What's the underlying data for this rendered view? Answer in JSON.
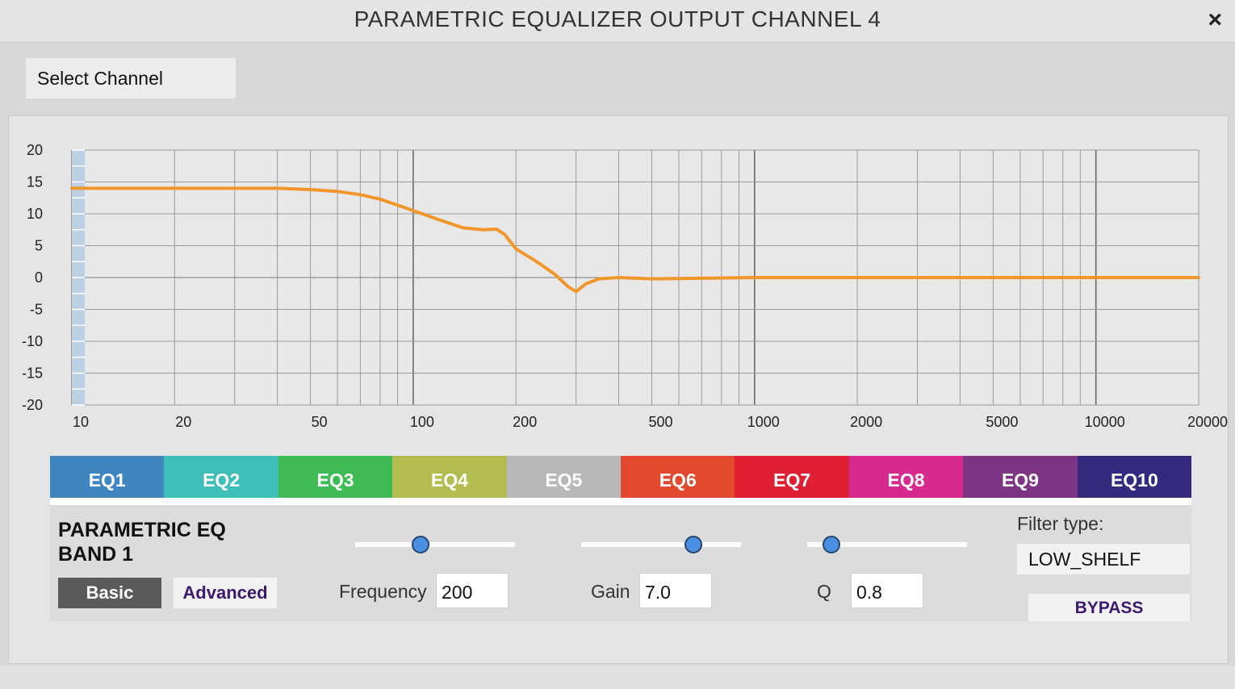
{
  "window": {
    "title": "PARAMETRIC EQUALIZER OUTPUT CHANNEL 4",
    "close_icon": "×"
  },
  "toolbar": {
    "select_channel_label": "Select Channel"
  },
  "chart_data": {
    "type": "line",
    "x_scale": "log",
    "xlim": [
      10,
      20000
    ],
    "ylim": [
      -20,
      20
    ],
    "x_ticks": [
      10,
      20,
      50,
      100,
      200,
      500,
      1000,
      2000,
      5000,
      10000,
      20000
    ],
    "x_tick_labels": [
      "10",
      "20",
      "50",
      "100",
      "200",
      "500",
      "1000",
      "2000",
      "5000",
      "10000",
      "20000"
    ],
    "y_ticks": [
      20,
      15,
      10,
      5,
      0,
      -5,
      -10,
      -15,
      -20
    ],
    "y_tick_labels": [
      "20",
      "15",
      "10",
      "5",
      "0",
      "-5",
      "-10",
      "-15",
      "-20"
    ],
    "grid": true,
    "line_color": "#f0962a",
    "series": [
      {
        "x": [
          10,
          20,
          30,
          40,
          50,
          60,
          70,
          80,
          100,
          120,
          140,
          160,
          175,
          185,
          200,
          230,
          260,
          285,
          300,
          320,
          350,
          400,
          500,
          1000,
          2000,
          5000,
          10000,
          20000
        ],
        "y": [
          14,
          14,
          14,
          14,
          13.8,
          13.5,
          13,
          12.3,
          10.5,
          9,
          7.8,
          7.5,
          7.6,
          6.8,
          4.5,
          2.5,
          0.5,
          -1.5,
          -2.2,
          -1,
          -0.2,
          0,
          -0.2,
          0,
          0,
          0,
          0,
          0
        ]
      }
    ]
  },
  "tabs": [
    {
      "label": "EQ1",
      "color": "#3f85c0"
    },
    {
      "label": "EQ2",
      "color": "#3fbdb9"
    },
    {
      "label": "EQ3",
      "color": "#3fbb55"
    },
    {
      "label": "EQ4",
      "color": "#b3bd4f"
    },
    {
      "label": "EQ5",
      "color": "#b8b8b8"
    },
    {
      "label": "EQ6",
      "color": "#e24a2d"
    },
    {
      "label": "EQ7",
      "color": "#df2033"
    },
    {
      "label": "EQ8",
      "color": "#d72a8e"
    },
    {
      "label": "EQ9",
      "color": "#7d3483"
    },
    {
      "label": "EQ10",
      "color": "#342b80"
    }
  ],
  "band": {
    "title": "PARAMETRIC EQ BAND 1",
    "basic_label": "Basic",
    "advanced_label": "Advanced",
    "frequency_label": "Frequency",
    "frequency_value": "200",
    "gain_label": "Gain",
    "gain_value": "7.0",
    "q_label": "Q",
    "q_value": "0.8",
    "frequency_slider_level": 0.41,
    "gain_slider_level": 0.7,
    "q_slider_level": 0.15,
    "filter_type_label": "Filter type:",
    "filter_type_value": "LOW_SHELF",
    "bypass_label": "BYPASS"
  }
}
